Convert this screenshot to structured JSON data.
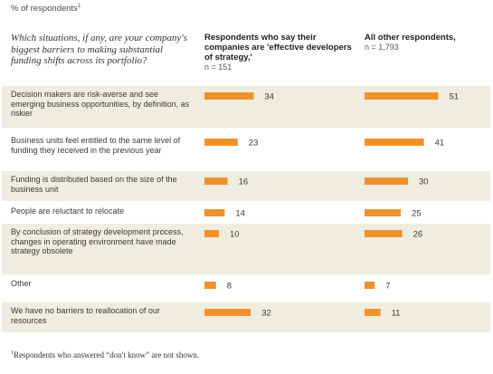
{
  "unit_label": "% of respondents",
  "footnote_marker": "1",
  "question": "Which situations, if any, are your company's biggest barriers to making substantial funding shifts across its portfolio?",
  "columns": [
    {
      "heading": "Respondents who say their companies are 'effective developers of strategy,'",
      "n": "n = 151"
    },
    {
      "heading": "All other respondents,",
      "n": "n = 1,793"
    }
  ],
  "footnote": "Respondents who answered “don't know” are not shown.",
  "colors": {
    "bar": "#f0922b",
    "band": "#efeddf"
  },
  "chart_data": {
    "type": "bar",
    "orientation": "horizontal",
    "categories": [
      "Decision makers are risk-averse and see emerging business opportunities, by definition, as riskier",
      "Business units feel entitled to the same level of funding they received in the previous year",
      "Funding is distributed based on the size of the business unit",
      "People are reluctant to relocate",
      "By conclusion of strategy development process, changes in operating environment have made strategy obsolete",
      "Other",
      "We have no barriers to reallocation of our resources"
    ],
    "series": [
      {
        "name": "Respondents who say their companies are 'effective developers of strategy,'",
        "values": [
          34,
          23,
          16,
          14,
          10,
          8,
          32
        ]
      },
      {
        "name": "All other respondents,",
        "values": [
          51,
          41,
          30,
          25,
          26,
          7,
          11
        ]
      }
    ],
    "xlim": [
      0,
      51
    ]
  }
}
